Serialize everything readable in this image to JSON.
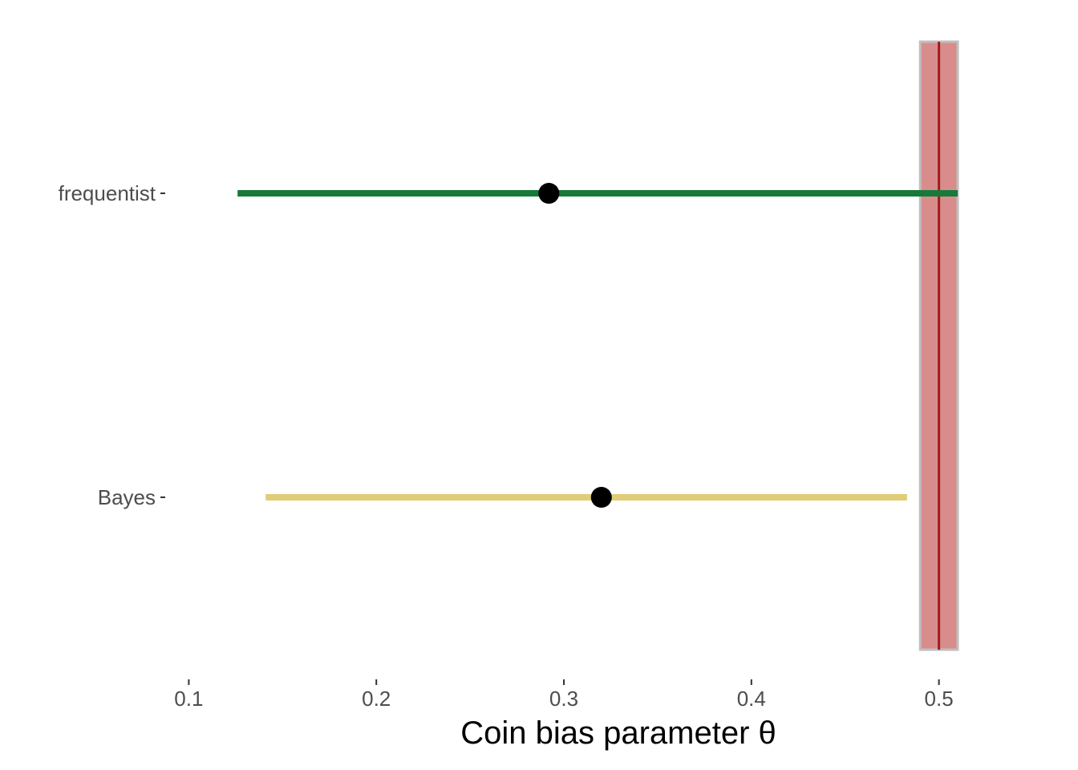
{
  "chart_data": {
    "type": "interval",
    "xlabel": "Coin bias parameter θ",
    "ylabel": "",
    "xlim": [
      0.09,
      0.51
    ],
    "x_ticks": [
      0.1,
      0.2,
      0.3,
      0.4,
      0.5
    ],
    "x_tick_labels": [
      "0.1",
      "0.2",
      "0.3",
      "0.4",
      "0.5"
    ],
    "grid": false,
    "categories": [
      "frequentist",
      "Bayes"
    ],
    "intervals": [
      {
        "category": "frequentist",
        "estimate": 0.292,
        "lower": 0.126,
        "upper": 0.51,
        "color": "#177a3a"
      },
      {
        "category": "Bayes",
        "estimate": 0.32,
        "lower": 0.141,
        "upper": 0.483,
        "color": "#dfcd78"
      }
    ],
    "reference": {
      "value": 0.5,
      "band": [
        0.49,
        0.51
      ],
      "line_color": "#a31a1a",
      "band_fill": "#d98c8c",
      "band_border": "#bfbfbf"
    },
    "point_color": "#000000"
  }
}
